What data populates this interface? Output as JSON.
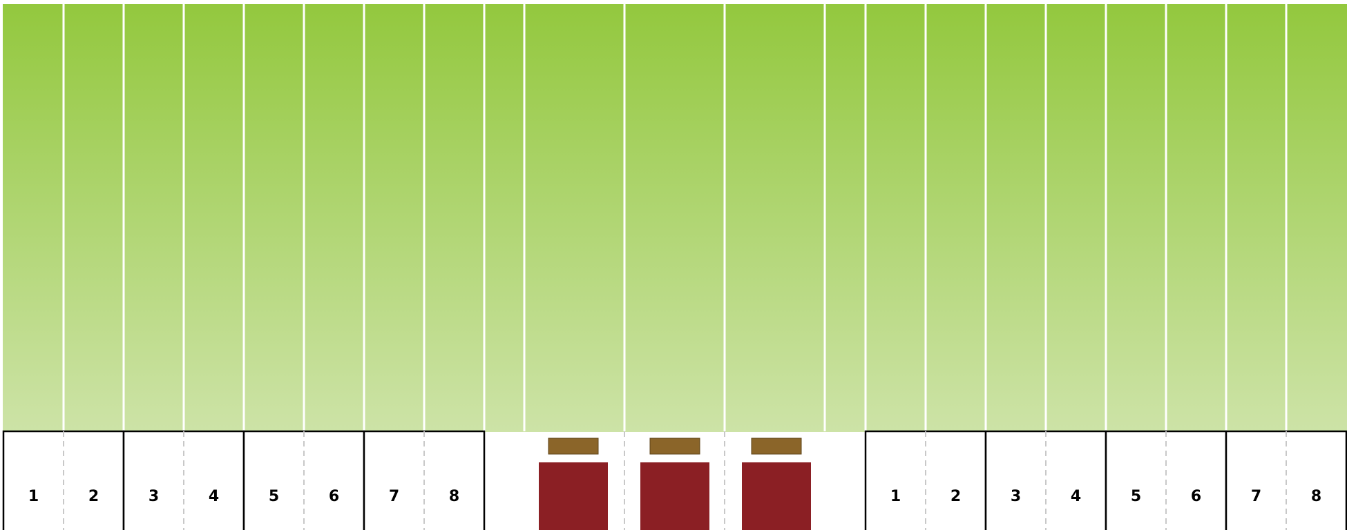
{
  "colors": {
    "green_top": "#93c83e",
    "green_bottom": "#cde3a7",
    "stall_border": "#000000",
    "stall_fill": "#ffffff",
    "divider_dash": "#c8c8c8",
    "strip_line": "#ffffff",
    "vehicle_body": "#8b1f24",
    "vehicle_top": "#8b6529",
    "label_text": "#000000"
  },
  "left_stalls": {
    "bays": 4,
    "numbers": [
      "1",
      "2",
      "3",
      "4",
      "5",
      "6",
      "7",
      "8"
    ]
  },
  "right_stalls": {
    "bays": 4,
    "numbers": [
      "1",
      "2",
      "3",
      "4",
      "5",
      "6",
      "7",
      "8"
    ]
  },
  "center_vehicles": {
    "count": 3
  }
}
